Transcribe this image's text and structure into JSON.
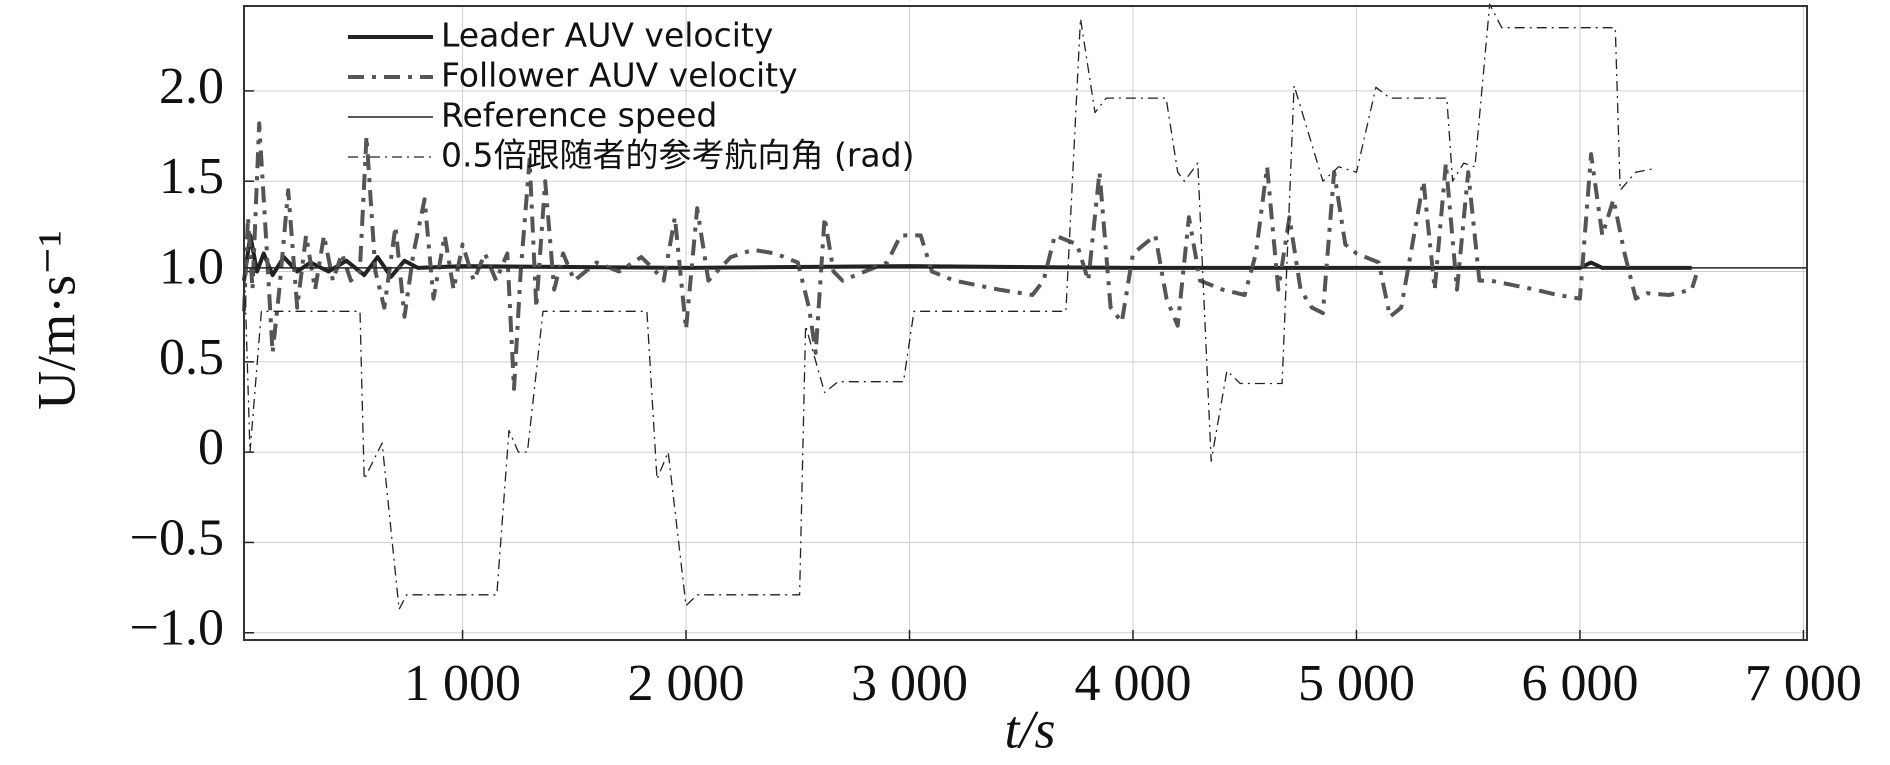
{
  "chart_data": {
    "type": "line",
    "xlabel": "t/s",
    "ylabel": "U/m·s⁻¹",
    "xlim": [
      22,
      7016
    ],
    "ylim": [
      -1.04,
      2.47
    ],
    "xticks": [
      {
        "value": 1000,
        "label": "1 000"
      },
      {
        "value": 2000,
        "label": "2 000"
      },
      {
        "value": 3000,
        "label": "3 000"
      },
      {
        "value": 4000,
        "label": "4 000"
      },
      {
        "value": 5000,
        "label": "5 000"
      },
      {
        "value": 6000,
        "label": "6 000"
      },
      {
        "value": 7000,
        "label": "7 000"
      }
    ],
    "yticks": [
      {
        "value": -1.0,
        "label": "−1.0"
      },
      {
        "value": -0.5,
        "label": "−0.5"
      },
      0,
      0.5,
      {
        "value": 1.0,
        "label": "1.0"
      },
      1.5,
      {
        "value": 2.0,
        "label": "2.0"
      }
    ],
    "grid": true,
    "legend": "upper left",
    "series": [
      {
        "name": "Leader AUV velocity",
        "color": "#222222",
        "linestyle": "solid",
        "linewidth": 4,
        "x": [
          22,
          50,
          80,
          110,
          150,
          200,
          260,
          320,
          400,
          480,
          560,
          620,
          680,
          740,
          800,
          1000,
          2000,
          3000,
          4000,
          5000,
          6000,
          6050,
          6100,
          6500
        ],
        "values": [
          0.95,
          1.2,
          1.0,
          1.1,
          0.98,
          1.08,
          1.0,
          1.05,
          1.0,
          1.06,
          0.98,
          1.08,
          0.97,
          1.06,
          1.02,
          1.03,
          1.02,
          1.03,
          1.02,
          1.02,
          1.02,
          1.05,
          1.02,
          1.02
        ]
      },
      {
        "name": "Follower AUV velocity",
        "color": "#555555",
        "linestyle": "dashdot",
        "linewidth": 4,
        "x": [
          22,
          40,
          60,
          90,
          120,
          150,
          180,
          220,
          260,
          300,
          340,
          380,
          420,
          460,
          500,
          540,
          570,
          610,
          650,
          700,
          740,
          780,
          830,
          870,
          920,
          960,
          1000,
          1050,
          1100,
          1150,
          1200,
          1230,
          1260,
          1300,
          1330,
          1370,
          1410,
          1450,
          1500,
          1600,
          1700,
          1800,
          1850,
          1900,
          1950,
          2000,
          2050,
          2100,
          2200,
          2300,
          2400,
          2500,
          2550,
          2580,
          2620,
          2660,
          2700,
          2800,
          2900,
          2960,
          3050,
          3100,
          3200,
          3400,
          3550,
          3600,
          3650,
          3750,
          3800,
          3850,
          3900,
          3950,
          4000,
          4100,
          4150,
          4200,
          4250,
          4300,
          4400,
          4500,
          4550,
          4600,
          4650,
          4700,
          4750,
          4800,
          4850,
          4900,
          4950,
          5000,
          5100,
          5150,
          5200,
          5300,
          5350,
          5400,
          5450,
          5500,
          5550,
          5600,
          5800,
          5900,
          6000,
          6050,
          6100,
          6150,
          6200,
          6250,
          6300,
          6400,
          6500,
          6520
        ],
        "values": [
          0.78,
          1.3,
          0.9,
          1.82,
          1.2,
          0.55,
          0.9,
          1.45,
          0.8,
          1.2,
          0.9,
          1.2,
          0.95,
          1.1,
          0.95,
          1.0,
          1.75,
          1.0,
          0.8,
          1.25,
          0.75,
          1.1,
          1.4,
          0.85,
          1.2,
          0.9,
          1.15,
          0.95,
          1.1,
          0.95,
          1.1,
          0.35,
          1.0,
          1.62,
          0.8,
          1.5,
          0.9,
          1.1,
          0.95,
          1.05,
          1.0,
          1.08,
          1.02,
          0.95,
          1.3,
          0.68,
          1.35,
          0.95,
          1.08,
          1.12,
          1.1,
          1.05,
          0.8,
          0.55,
          1.3,
          1.0,
          0.95,
          1.0,
          1.05,
          1.2,
          1.2,
          1.0,
          0.95,
          0.9,
          0.87,
          0.95,
          1.2,
          1.15,
          0.95,
          1.55,
          0.8,
          0.72,
          1.1,
          1.2,
          0.85,
          0.7,
          1.3,
          0.95,
          0.9,
          0.87,
          1.1,
          1.58,
          0.9,
          1.3,
          0.9,
          0.8,
          0.77,
          1.55,
          1.15,
          1.1,
          1.05,
          0.75,
          0.8,
          1.5,
          0.9,
          1.6,
          0.9,
          1.55,
          0.95,
          0.95,
          0.9,
          0.87,
          0.85,
          1.65,
          1.2,
          1.4,
          1.1,
          0.85,
          0.88,
          0.87,
          0.9,
          0.98
        ]
      },
      {
        "name": "Reference speed",
        "color": "#222222",
        "linestyle": "solid",
        "linewidth": 1.5,
        "x": [
          22,
          7016
        ],
        "values": [
          1.02,
          1.02
        ]
      },
      {
        "name": "0.5倍跟随者的参考航向角 (rad)",
        "color": "#222222",
        "linestyle": "dashdot",
        "linewidth": 1.3,
        "x": [
          22,
          49,
          100,
          541,
          560,
          640,
          716,
          750,
          1153,
          1208,
          1250,
          1290,
          1360,
          1825,
          1870,
          1920,
          2000,
          2050,
          2508,
          2535,
          2620,
          2680,
          2973,
          3020,
          3700,
          3765,
          3830,
          3880,
          4148,
          4200,
          4230,
          4290,
          4350,
          4420,
          4480,
          4667,
          4721,
          4850,
          4920,
          5000,
          5087,
          5150,
          5404,
          5430,
          5480,
          5530,
          5596,
          5650,
          6158,
          6180,
          6250,
          6333
        ],
        "values": [
          1.1,
          0.0,
          0.78,
          0.78,
          -0.15,
          0.05,
          -0.87,
          -0.79,
          -0.79,
          0.12,
          0.0,
          0.0,
          0.78,
          0.78,
          -0.15,
          0.0,
          -0.85,
          -0.79,
          -0.79,
          0.7,
          0.33,
          0.39,
          0.39,
          0.78,
          0.78,
          2.4,
          1.88,
          1.96,
          1.96,
          1.55,
          1.5,
          1.6,
          -0.05,
          0.45,
          0.38,
          0.38,
          2.03,
          1.5,
          1.58,
          1.55,
          2.02,
          1.96,
          1.96,
          1.5,
          1.6,
          1.58,
          2.48,
          2.35,
          2.35,
          1.45,
          1.55,
          1.57
        ]
      }
    ]
  }
}
